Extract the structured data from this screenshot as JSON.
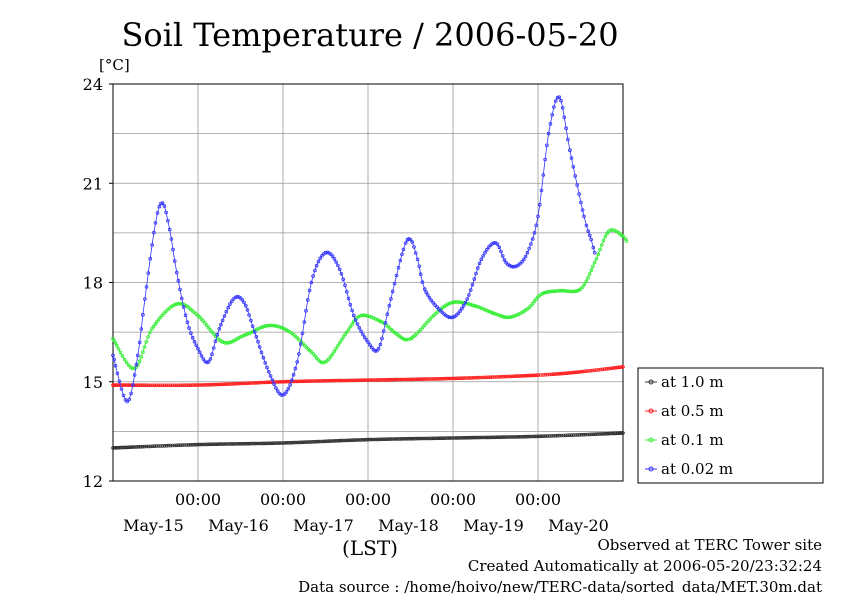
{
  "chart_data": {
    "type": "line",
    "title": "Soil Temperature / 2006-05-20",
    "ylabel": "[°C]",
    "xlabel": "(LST)",
    "ylim": [
      12,
      24
    ],
    "xlim": [
      0,
      144
    ],
    "y_ticks": [
      "12",
      "15",
      "18",
      "21",
      "24"
    ],
    "x_ticks": [
      {
        "x": 24,
        "time": "00:00",
        "date": "May-15"
      },
      {
        "x": 48,
        "time": "00:00",
        "date": "May-16"
      },
      {
        "x": 72,
        "time": "00:00",
        "date": "May-17"
      },
      {
        "x": 96,
        "time": "00:00",
        "date": "May-18"
      },
      {
        "x": 120,
        "time": "00:00",
        "date": "May-19"
      },
      {
        "x": 144,
        "time": "",
        "date": "May-20"
      }
    ],
    "grid": true,
    "legend_position": "right",
    "series": [
      {
        "name": "at 1.0 m",
        "color": "#333333",
        "points": [
          [
            0,
            13.0
          ],
          [
            24,
            13.1
          ],
          [
            48,
            13.15
          ],
          [
            72,
            13.25
          ],
          [
            96,
            13.3
          ],
          [
            120,
            13.35
          ],
          [
            144,
            13.45
          ]
        ]
      },
      {
        "name": "at 0.5 m",
        "color": "#ff2020",
        "points": [
          [
            0,
            14.9
          ],
          [
            24,
            14.9
          ],
          [
            48,
            15.0
          ],
          [
            72,
            15.05
          ],
          [
            96,
            15.1
          ],
          [
            120,
            15.2
          ],
          [
            132,
            15.3
          ],
          [
            144,
            15.45
          ]
        ]
      },
      {
        "name": "at 0.1 m",
        "color": "#33ee33",
        "points": [
          [
            0,
            16.3
          ],
          [
            6,
            15.4
          ],
          [
            11,
            16.6
          ],
          [
            18,
            17.35
          ],
          [
            24,
            17.0
          ],
          [
            31,
            16.2
          ],
          [
            37,
            16.4
          ],
          [
            44,
            16.7
          ],
          [
            50,
            16.5
          ],
          [
            56,
            15.9
          ],
          [
            60,
            15.6
          ],
          [
            66,
            16.5
          ],
          [
            70,
            17.0
          ],
          [
            76,
            16.8
          ],
          [
            80,
            16.45
          ],
          [
            84,
            16.3
          ],
          [
            91,
            17.05
          ],
          [
            96,
            17.4
          ],
          [
            102,
            17.3
          ],
          [
            108,
            17.05
          ],
          [
            112,
            16.95
          ],
          [
            117,
            17.2
          ],
          [
            121,
            17.65
          ],
          [
            126,
            17.75
          ],
          [
            132,
            17.8
          ],
          [
            136,
            18.6
          ],
          [
            140,
            19.55
          ],
          [
            144,
            19.4
          ],
          [
            145,
            19.25
          ]
        ]
      },
      {
        "name": "at 0.02 m",
        "color": "#3333ff",
        "points": [
          [
            0,
            15.8
          ],
          [
            4,
            14.4
          ],
          [
            7,
            15.8
          ],
          [
            9,
            17.5
          ],
          [
            12,
            19.8
          ],
          [
            14,
            20.4
          ],
          [
            16,
            19.6
          ],
          [
            18,
            18.3
          ],
          [
            21,
            16.8
          ],
          [
            24,
            16.0
          ],
          [
            27,
            15.6
          ],
          [
            30,
            16.6
          ],
          [
            34,
            17.5
          ],
          [
            37,
            17.4
          ],
          [
            40,
            16.5
          ],
          [
            44,
            15.3
          ],
          [
            48,
            14.6
          ],
          [
            52,
            15.6
          ],
          [
            56,
            18.0
          ],
          [
            60,
            18.9
          ],
          [
            64,
            18.4
          ],
          [
            68,
            17.0
          ],
          [
            72,
            16.2
          ],
          [
            75,
            16.0
          ],
          [
            78,
            17.3
          ],
          [
            82,
            19.0
          ],
          [
            84,
            19.3
          ],
          [
            86,
            18.7
          ],
          [
            88,
            17.8
          ],
          [
            92,
            17.2
          ],
          [
            96,
            16.95
          ],
          [
            100,
            17.5
          ],
          [
            104,
            18.7
          ],
          [
            108,
            19.2
          ],
          [
            111,
            18.6
          ],
          [
            114,
            18.5
          ],
          [
            117,
            18.9
          ],
          [
            120,
            20.0
          ],
          [
            123,
            22.5
          ],
          [
            126,
            23.6
          ],
          [
            129,
            22.0
          ],
          [
            133,
            20.0
          ],
          [
            135,
            19.3
          ],
          [
            136,
            18.9
          ]
        ]
      }
    ]
  },
  "footer": {
    "observed": "Observed at TERC Tower site",
    "created": "Created Automatically at 2006-05-20/23:32:24",
    "source": "Data source : /home/hoivo/new/TERC-data/sorted_data/MET.30m.dat"
  }
}
